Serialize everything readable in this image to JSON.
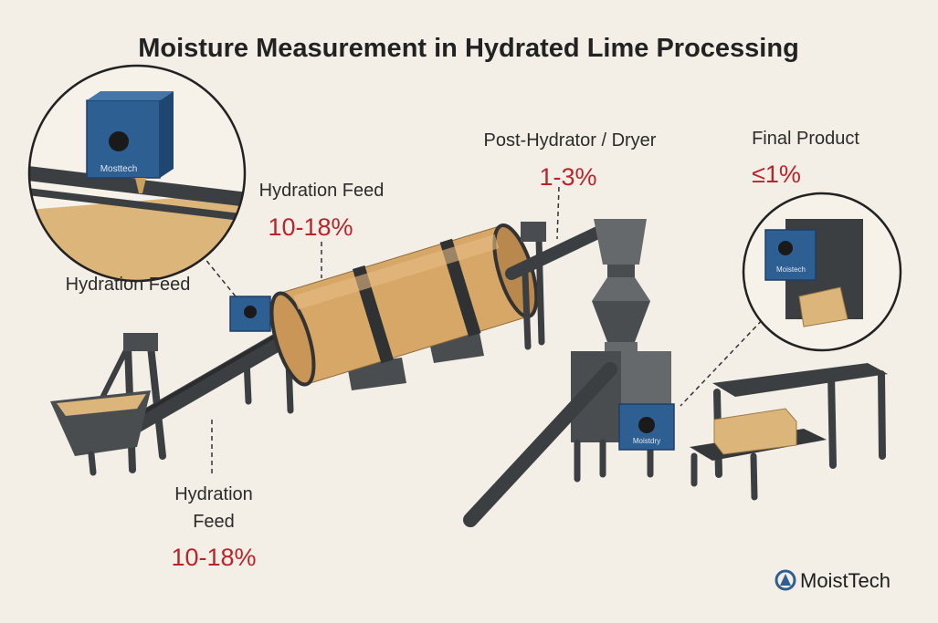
{
  "title": "Moisture Measurement in Hydrated Lime Processing",
  "callouts": [
    {
      "label": "Hydration Feed"
    },
    {
      "label": "Hydration Feed",
      "value": "10-18%"
    },
    {
      "label_lines": [
        "Hydration",
        "Feed"
      ],
      "value": "10-18%"
    },
    {
      "label": "Post-Hydrator / Dryer",
      "value": "1-3%"
    },
    {
      "label": "Final Product",
      "value": "≤1%"
    }
  ],
  "sensor_labels": [
    "Mosttech",
    "Moistech",
    "Moistdry"
  ],
  "brand": "MoistTech"
}
